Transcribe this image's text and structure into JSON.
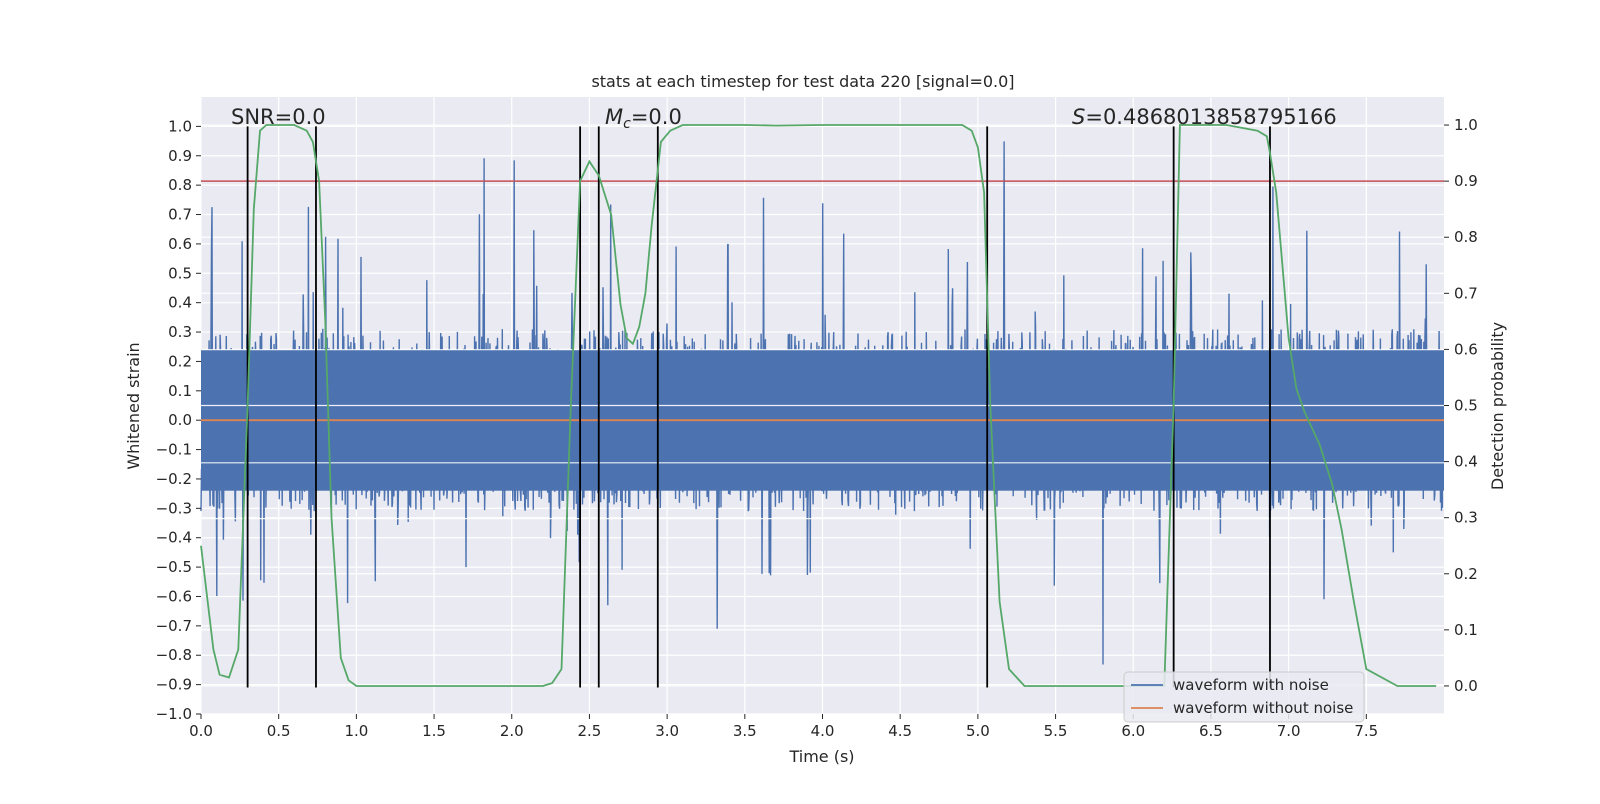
{
  "chart_data": {
    "type": "line",
    "title": "stats at each timestep for test data 220 [signal=0.0]",
    "xlabel": "Time (s)",
    "ylabel_left": "Whitened strain",
    "ylabel_right": "Detection probability",
    "xlim": [
      0.0,
      8.0
    ],
    "ylim_left": [
      -1.0,
      1.1
    ],
    "ylim_right": [
      -0.05,
      1.05
    ],
    "xticks": [
      "0.0",
      "0.5",
      "1.0",
      "1.5",
      "2.0",
      "2.5",
      "3.0",
      "3.5",
      "4.0",
      "4.5",
      "5.0",
      "5.5",
      "6.0",
      "6.5",
      "7.0",
      "7.5"
    ],
    "yticks_left": [
      "-1.0",
      "-0.9",
      "-0.8",
      "-0.7",
      "-0.6",
      "-0.5",
      "-0.4",
      "-0.3",
      "-0.2",
      "-0.1",
      "0.0",
      "0.1",
      "0.2",
      "0.3",
      "0.4",
      "0.5",
      "0.6",
      "0.7",
      "0.8",
      "0.9",
      "1.0"
    ],
    "yticks_right": [
      "0.0",
      "0.1",
      "0.2",
      "0.3",
      "0.4",
      "0.5",
      "0.6",
      "0.7",
      "0.8",
      "0.9",
      "1.0"
    ],
    "grid": true,
    "legend_position": "lower right",
    "annotations": {
      "snr": "SNR=0.0",
      "mc_symbol": "M",
      "mc_sub": "c",
      "mc_value": "=0.0",
      "s_symbol": "S",
      "s_value": "=0.4868013858795166"
    },
    "threshold_line": {
      "value_right": 0.9,
      "color": "#c44e52"
    },
    "vertical_markers_s": [
      0.3,
      0.74,
      2.44,
      2.56,
      2.94,
      5.06,
      6.26,
      6.88
    ],
    "series": [
      {
        "name": "waveform with noise",
        "color": "#4c72b0",
        "description": "dense noise, amplitude mostly within ±0.5, spikes up to ~0.95 and down to ~-0.9"
      },
      {
        "name": "waveform without noise",
        "color": "#dd8452",
        "values_constant": 0.0
      },
      {
        "name": "",
        "axis": "right",
        "color": "#55a868",
        "x": [
          0.0,
          0.08,
          0.12,
          0.18,
          0.24,
          0.3,
          0.34,
          0.38,
          0.42,
          0.5,
          0.6,
          0.68,
          0.72,
          0.76,
          0.8,
          0.84,
          0.9,
          0.95,
          1.0,
          1.5,
          2.0,
          2.2,
          2.26,
          2.32,
          2.38,
          2.44,
          2.5,
          2.56,
          2.64,
          2.7,
          2.74,
          2.78,
          2.82,
          2.86,
          2.9,
          2.96,
          3.02,
          3.1,
          3.5,
          3.7,
          4.0,
          4.5,
          4.9,
          4.96,
          5.0,
          5.04,
          5.08,
          5.14,
          5.2,
          5.3,
          5.5,
          6.0,
          6.2,
          6.26,
          6.3,
          6.4,
          6.6,
          6.8,
          6.86,
          6.88,
          6.92,
          6.96,
          7.0,
          7.05,
          7.1,
          7.2,
          7.28,
          7.34,
          7.42,
          7.5,
          7.7,
          7.95
        ],
        "y": [
          0.25,
          0.065,
          0.02,
          0.015,
          0.065,
          0.5,
          0.85,
          0.99,
          1.0,
          1.0,
          1.0,
          0.99,
          0.97,
          0.9,
          0.65,
          0.3,
          0.05,
          0.01,
          0.0,
          0.0,
          0.0,
          0.0,
          0.005,
          0.03,
          0.5,
          0.9,
          0.935,
          0.91,
          0.84,
          0.68,
          0.62,
          0.61,
          0.64,
          0.7,
          0.82,
          0.97,
          0.99,
          1.0,
          1.0,
          0.999,
          1.0,
          1.0,
          1.0,
          0.99,
          0.96,
          0.88,
          0.5,
          0.15,
          0.03,
          0.0,
          0.0,
          0.0,
          0.0,
          0.5,
          1.0,
          1.0,
          1.0,
          0.99,
          0.98,
          0.95,
          0.88,
          0.75,
          0.62,
          0.53,
          0.49,
          0.43,
          0.36,
          0.28,
          0.15,
          0.03,
          0.0,
          0.0
        ]
      }
    ]
  }
}
